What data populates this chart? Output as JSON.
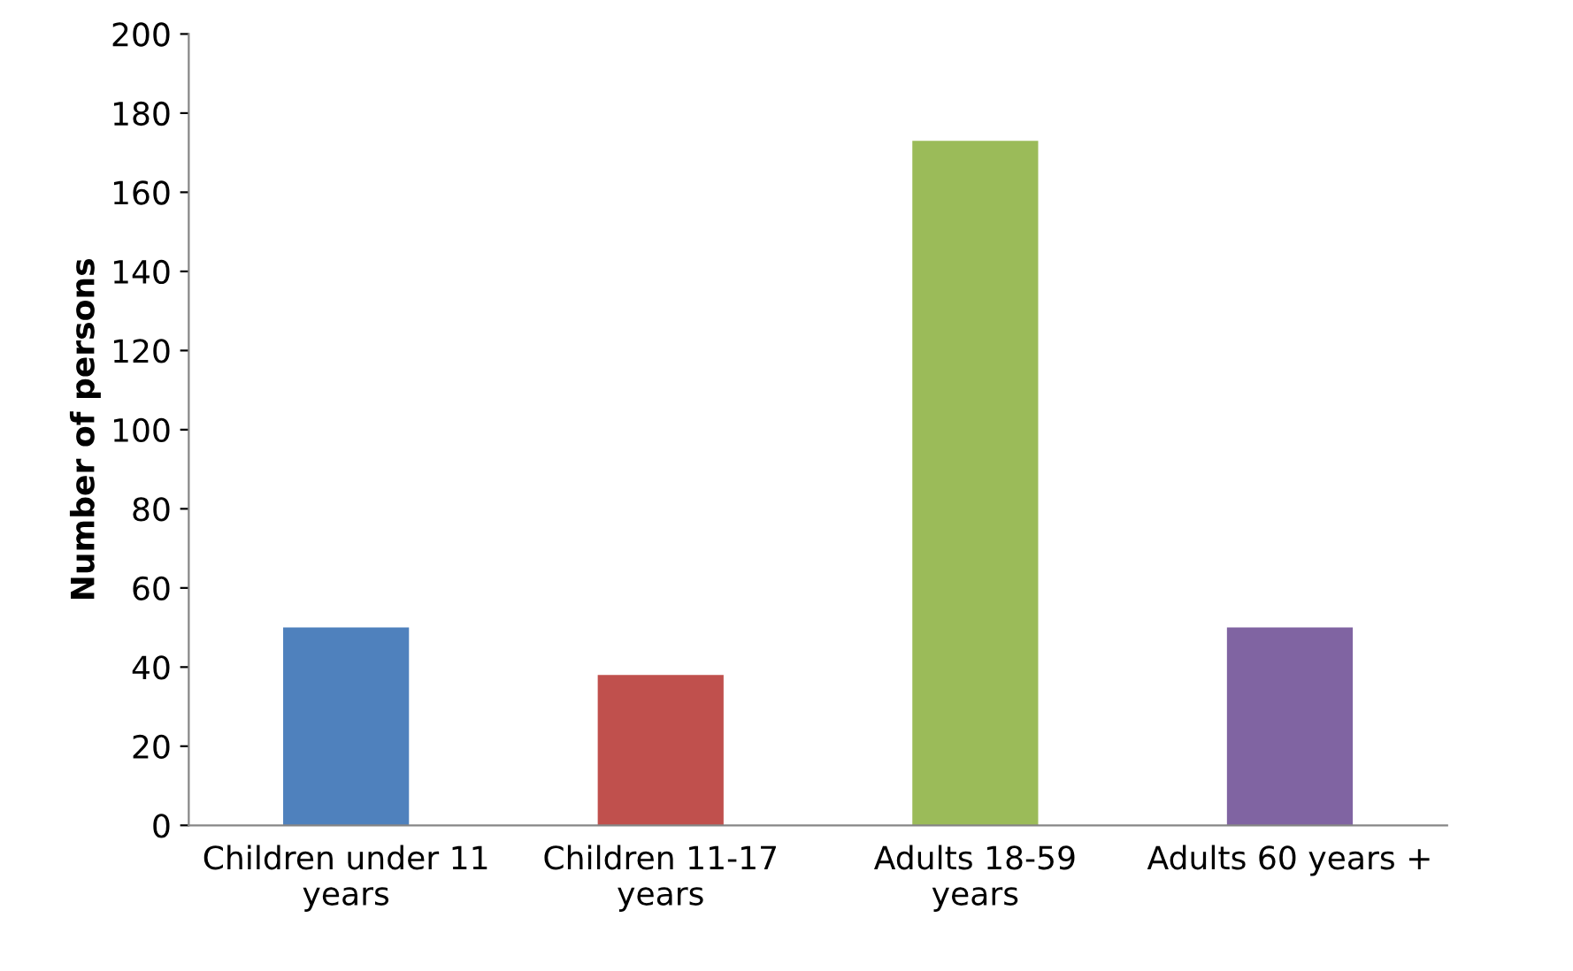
{
  "chart_data": {
    "type": "bar",
    "ylabel": "Number of persons",
    "categories": [
      "Children under 11\nyears",
      "Children 11-17\nyears",
      "Adults 18-59\nyears",
      "Adults 60 years +"
    ],
    "values": [
      50,
      38,
      173,
      50
    ],
    "colors": [
      "#4f81bd",
      "#c0504d",
      "#9bbb59",
      "#8064a2"
    ],
    "ylim": [
      0,
      200
    ],
    "yticks": [
      0,
      20,
      40,
      60,
      80,
      100,
      120,
      140,
      160,
      180,
      200
    ],
    "grid": false,
    "legend": false
  }
}
